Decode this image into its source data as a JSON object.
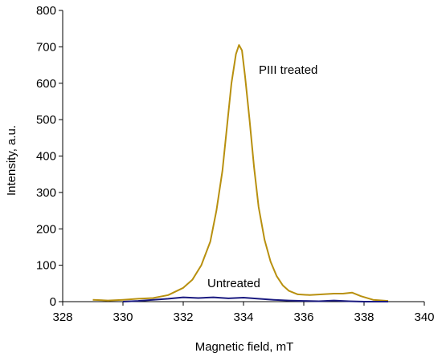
{
  "chart_data": {
    "type": "line",
    "title": "",
    "xlabel": "Magnetic field, mT",
    "ylabel": "Intensity, a.u.",
    "xlim": [
      328,
      340
    ],
    "ylim": [
      0,
      800
    ],
    "x_ticks": [
      328,
      330,
      332,
      334,
      336,
      338,
      340
    ],
    "y_ticks": [
      0,
      100,
      200,
      300,
      400,
      500,
      600,
      700,
      800
    ],
    "grid": false,
    "legend": "none",
    "annotations": [
      {
        "text": "PIII treated",
        "series": 0
      },
      {
        "text": "Untreated",
        "series": 1
      }
    ],
    "series": [
      {
        "color": "#b8900f",
        "x": [
          329.0,
          329.5,
          330.0,
          330.5,
          331.0,
          331.5,
          332.0,
          332.3,
          332.6,
          332.9,
          333.1,
          333.3,
          333.45,
          333.6,
          333.75,
          333.85,
          333.95,
          334.05,
          334.2,
          334.35,
          334.5,
          334.7,
          334.9,
          335.1,
          335.3,
          335.5,
          335.8,
          336.2,
          336.6,
          337.0,
          337.3,
          337.6,
          337.9,
          338.3,
          338.8
        ],
        "y": [
          5,
          3,
          5,
          8,
          10,
          18,
          38,
          60,
          100,
          165,
          250,
          360,
          480,
          600,
          680,
          705,
          690,
          620,
          500,
          370,
          260,
          170,
          110,
          70,
          45,
          30,
          20,
          18,
          20,
          22,
          22,
          25,
          15,
          5,
          2
        ]
      },
      {
        "color": "#1a1a80",
        "x": [
          330.0,
          330.5,
          331.0,
          331.5,
          332.0,
          332.5,
          333.0,
          333.5,
          334.0,
          334.5,
          335.0,
          335.5,
          336.0,
          336.5,
          337.0,
          337.5,
          338.0,
          338.5,
          338.8
        ],
        "y": [
          0,
          2,
          5,
          8,
          12,
          10,
          12,
          9,
          11,
          8,
          5,
          3,
          2,
          1,
          3,
          1,
          0,
          0,
          0
        ]
      }
    ]
  }
}
